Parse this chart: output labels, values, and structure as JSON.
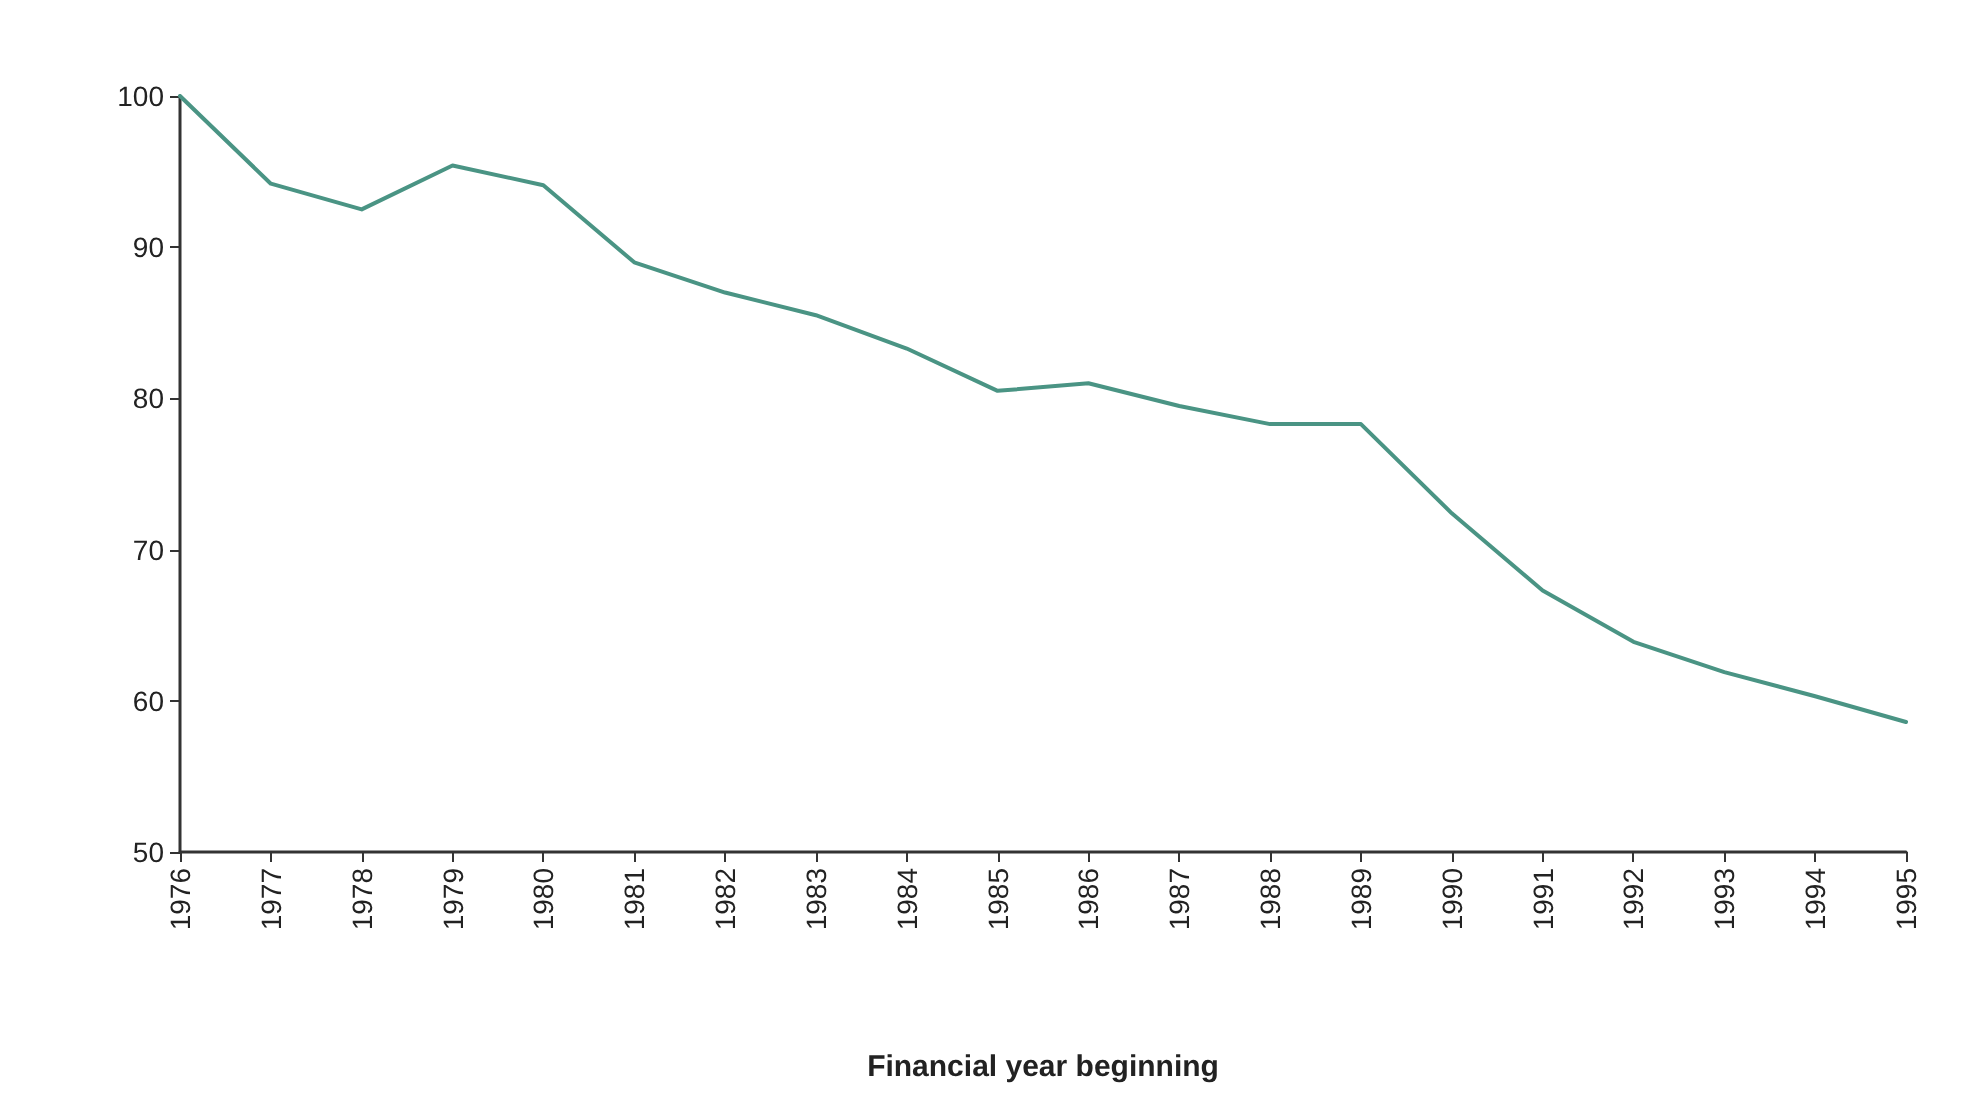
{
  "chart_data": {
    "type": "line",
    "xlabel": "Financial year beginning",
    "categories": [
      "1976",
      "1977",
      "1978",
      "1979",
      "1980",
      "1981",
      "1982",
      "1983",
      "1984",
      "1985",
      "1986",
      "1987",
      "1988",
      "1989",
      "1990",
      "1991",
      "1992",
      "1993",
      "1994",
      "1995"
    ],
    "series": [
      {
        "color": "#4a9484",
        "values": [
          100,
          94.2,
          92.5,
          95.4,
          94.1,
          89,
          87,
          85.5,
          83.3,
          80.5,
          81,
          79.5,
          78.3,
          78.3,
          72.4,
          67.3,
          63.9,
          61.9,
          60.3,
          58.6
        ]
      }
    ],
    "ylim": [
      50,
      100
    ],
    "yticks": [
      50,
      60,
      70,
      80,
      90,
      100
    ],
    "marker": "none",
    "line_style": "solid"
  }
}
